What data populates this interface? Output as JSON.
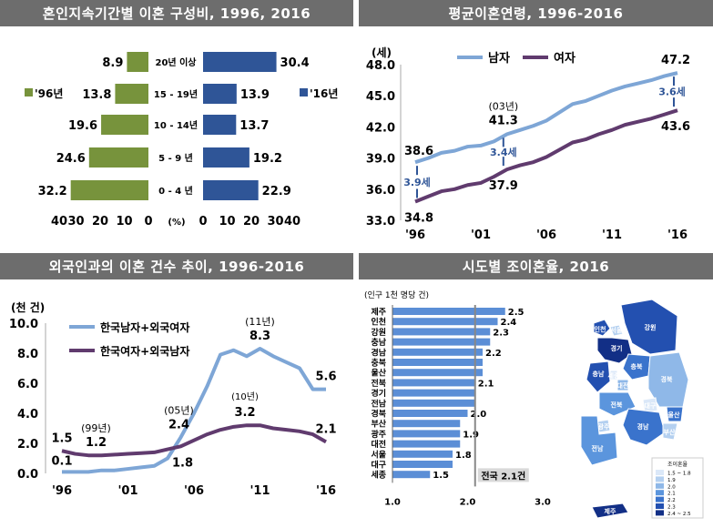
{
  "panels": {
    "tl": {
      "title": "혼인지속기간별 이혼 구성비, 1996, 2016"
    },
    "tr": {
      "title": "평균이혼연령, 1996-2016"
    },
    "bl": {
      "title": "외국인과의 이혼 건수 추이, 1996-2016"
    },
    "br": {
      "title": "시도별 조이혼율, 2016"
    }
  },
  "colors": {
    "green": "#77933c",
    "blue": "#2f5597",
    "male": "#7ea6d6",
    "female": "#603b6e",
    "bar_light": "#5b8ed6",
    "gray_line": "#888888"
  },
  "chart_data": [
    {
      "type": "bar",
      "id": "duration",
      "categories": [
        "20년 이상",
        "15 - 19년",
        "10 - 14년",
        "5 - 9 년",
        "0 - 4 년"
      ],
      "series": [
        {
          "name": "'96년",
          "values": [
            8.9,
            13.8,
            19.6,
            24.6,
            32.2
          ]
        },
        {
          "name": "'16년",
          "values": [
            30.4,
            13.9,
            13.7,
            19.2,
            22.9
          ]
        }
      ],
      "left_ticks": [
        "40",
        "30",
        "20",
        "10",
        "0"
      ],
      "right_ticks": [
        "0",
        "10",
        "20",
        "30",
        "40"
      ],
      "unit_label": "(%)",
      "xlim": [
        0,
        40
      ]
    },
    {
      "type": "line",
      "id": "age",
      "ylabel": "(세)",
      "ylim": [
        33.0,
        48.0
      ],
      "yticks": [
        "48.0",
        "45.0",
        "42.0",
        "39.0",
        "36.0",
        "33.0"
      ],
      "xticks": [
        "'96",
        "'01",
        "'06",
        "'11",
        "'16"
      ],
      "x": [
        1996,
        1997,
        1998,
        1999,
        2000,
        2001,
        2002,
        2003,
        2004,
        2005,
        2006,
        2007,
        2008,
        2009,
        2010,
        2011,
        2012,
        2013,
        2014,
        2015,
        2016
      ],
      "series": [
        {
          "name": "남자",
          "values": [
            38.6,
            39.0,
            39.5,
            39.7,
            40.1,
            40.2,
            40.6,
            41.3,
            41.7,
            42.1,
            42.6,
            43.4,
            44.2,
            44.5,
            45.0,
            45.5,
            45.9,
            46.2,
            46.5,
            46.9,
            47.2
          ]
        },
        {
          "name": "여자",
          "values": [
            34.8,
            35.3,
            35.8,
            36.0,
            36.4,
            36.6,
            37.2,
            37.9,
            38.3,
            38.6,
            39.1,
            39.8,
            40.5,
            40.8,
            41.3,
            41.7,
            42.2,
            42.5,
            42.8,
            43.2,
            43.6
          ]
        }
      ],
      "labels": {
        "m96": "38.6",
        "f96": "34.8",
        "gap96": "3.9세",
        "note03": "(03년)",
        "m03": "41.3",
        "f03": "37.9",
        "gap03": "3.4세",
        "m16": "47.2",
        "f16": "43.6",
        "gap16": "3.6세"
      }
    },
    {
      "type": "line",
      "id": "foreign",
      "ylabel": "(천 건)",
      "ylim": [
        0.0,
        10.0
      ],
      "yticks": [
        "10.0",
        "8.0",
        "6.0",
        "4.0",
        "2.0",
        "0.0"
      ],
      "xticks": [
        "'96",
        "'01",
        "'06",
        "'11",
        "'16"
      ],
      "x": [
        1996,
        1997,
        1998,
        1999,
        2000,
        2001,
        2002,
        2003,
        2004,
        2005,
        2006,
        2007,
        2008,
        2009,
        2010,
        2011,
        2012,
        2013,
        2014,
        2015,
        2016
      ],
      "series": [
        {
          "name": "한국남자+외국여자",
          "values": [
            0.1,
            0.1,
            0.1,
            0.2,
            0.2,
            0.3,
            0.4,
            0.5,
            1.0,
            2.4,
            4.0,
            5.8,
            7.9,
            8.2,
            7.8,
            8.3,
            7.8,
            7.4,
            7.0,
            5.6,
            5.6
          ]
        },
        {
          "name": "한국여자+외국남자",
          "values": [
            1.5,
            1.3,
            1.2,
            1.2,
            1.25,
            1.3,
            1.35,
            1.4,
            1.6,
            1.8,
            2.2,
            2.6,
            2.9,
            3.1,
            3.2,
            3.2,
            3.0,
            2.9,
            2.8,
            2.6,
            2.1
          ]
        }
      ],
      "labels": {
        "f96": "1.5",
        "m96": "0.1",
        "note99": "(99년)",
        "f99": "1.2",
        "note05": "(05년)",
        "m05": "2.4",
        "f05": "1.8",
        "note10": "(10년)",
        "f10": "3.2",
        "note11": "(11년)",
        "m11": "8.3",
        "m16": "5.6",
        "f16": "2.1"
      }
    },
    {
      "type": "bar",
      "id": "regions",
      "unit_label": "(인구 1천 명당 건)",
      "categories": [
        "제주",
        "인천",
        "강원",
        "충남",
        "경남",
        "충북",
        "울산",
        "전북",
        "경기",
        "전남",
        "경북",
        "부산",
        "광주",
        "대전",
        "서울",
        "대구",
        "세종"
      ],
      "values": [
        2.5,
        2.4,
        2.3,
        2.3,
        2.2,
        2.2,
        2.2,
        2.1,
        2.1,
        2.1,
        2.0,
        1.9,
        1.9,
        1.9,
        1.8,
        1.8,
        1.5
      ],
      "value_labels": [
        "2.5",
        "2.4",
        "2.3",
        "",
        "2.2",
        "",
        "",
        "2.1",
        "",
        "",
        "2.0",
        "",
        "1.9",
        "",
        "1.8",
        "",
        "1.5"
      ],
      "xlim": [
        1.0,
        3.0
      ],
      "xticks": [
        "1.0",
        "2.0",
        "3.0"
      ],
      "national": {
        "value": 2.1,
        "label": "전국 2.1건"
      }
    }
  ],
  "map": {
    "regions": [
      "인천",
      "서울",
      "강원",
      "경기",
      "충남",
      "충북",
      "세종",
      "대전",
      "경북",
      "대구",
      "전북",
      "광주",
      "전남",
      "경남",
      "울산",
      "부산",
      "제주"
    ],
    "legend_title": "조이혼율",
    "legend_items": [
      "1.5 ~ 1.8",
      "1.9",
      "2.0",
      "2.1",
      "2.2",
      "2.3",
      "2.4 ~ 2.5"
    ],
    "legend_colors": [
      "#dbe8f8",
      "#b4d0f0",
      "#8fb8e8",
      "#5b95dd",
      "#3a73cc",
      "#2350b0",
      "#122f86"
    ]
  }
}
